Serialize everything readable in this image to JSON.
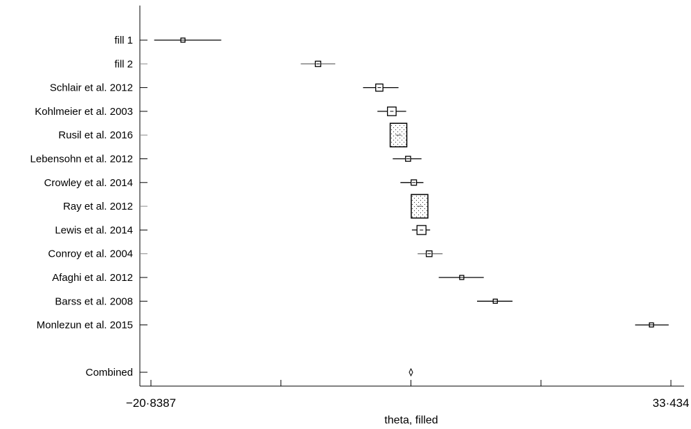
{
  "chart_data": {
    "type": "forest",
    "xlabel": "theta, filled",
    "xlim": [
      -20.8387,
      33.434
    ],
    "x_tick_labels": [
      "−20·8387",
      "33·434"
    ],
    "x_ticks": [
      -20.8387,
      -7.2705,
      6.2977,
      19.8658,
      33.434
    ],
    "studies": [
      {
        "name": "fill 1",
        "estimate": -17.5,
        "lower": -20.5,
        "upper": -13.5,
        "weight": 0.18,
        "style": "plain",
        "line": "dark"
      },
      {
        "name": "fill 2",
        "estimate": -3.4,
        "lower": -5.2,
        "upper": -1.6,
        "weight": 0.3,
        "style": "plain",
        "line": "light"
      },
      {
        "name": "Schlair et al. 2012",
        "estimate": 3.0,
        "lower": 1.3,
        "upper": 5.0,
        "weight": 0.4,
        "style": "plain",
        "line": "dark"
      },
      {
        "name": "Kohlmeier et al. 2003",
        "estimate": 4.3,
        "lower": 2.8,
        "upper": 5.8,
        "weight": 0.48,
        "style": "plain",
        "line": "dark"
      },
      {
        "name": "Rusil et al. 2016",
        "estimate": 5.0,
        "lower": 4.5,
        "upper": 5.6,
        "weight": 1.0,
        "style": "dotted",
        "line": "light"
      },
      {
        "name": "Lebensohn et al. 2012",
        "estimate": 6.0,
        "lower": 4.4,
        "upper": 7.4,
        "weight": 0.28,
        "style": "plain",
        "line": "dark"
      },
      {
        "name": "Crowley et al. 2014",
        "estimate": 6.6,
        "lower": 5.2,
        "upper": 7.6,
        "weight": 0.3,
        "style": "plain",
        "line": "dark"
      },
      {
        "name": "Ray et al. 2012",
        "estimate": 7.2,
        "lower": 6.6,
        "upper": 7.9,
        "weight": 1.0,
        "style": "dotted",
        "line": "light"
      },
      {
        "name": "Lewis et al. 2014",
        "estimate": 7.4,
        "lower": 6.4,
        "upper": 8.3,
        "weight": 0.5,
        "style": "plain",
        "line": "dark"
      },
      {
        "name": "Conroy et al. 2004",
        "estimate": 8.2,
        "lower": 7.0,
        "upper": 9.6,
        "weight": 0.32,
        "style": "plain",
        "line": "light"
      },
      {
        "name": "Afaghi et al. 2012",
        "estimate": 11.6,
        "lower": 9.2,
        "upper": 13.9,
        "weight": 0.1,
        "style": "plain",
        "line": "dark"
      },
      {
        "name": "Barss et al. 2008",
        "estimate": 15.1,
        "lower": 13.2,
        "upper": 16.9,
        "weight": 0.22,
        "style": "plain",
        "line": "dark"
      },
      {
        "name": "Monlezun et al. 2015",
        "estimate": 31.4,
        "lower": 29.7,
        "upper": 33.2,
        "weight": 0.2,
        "style": "plain",
        "line": "dark"
      }
    ],
    "combined": {
      "name": "Combined",
      "estimate": 6.3,
      "lower": 6.2,
      "upper": 6.4
    }
  }
}
